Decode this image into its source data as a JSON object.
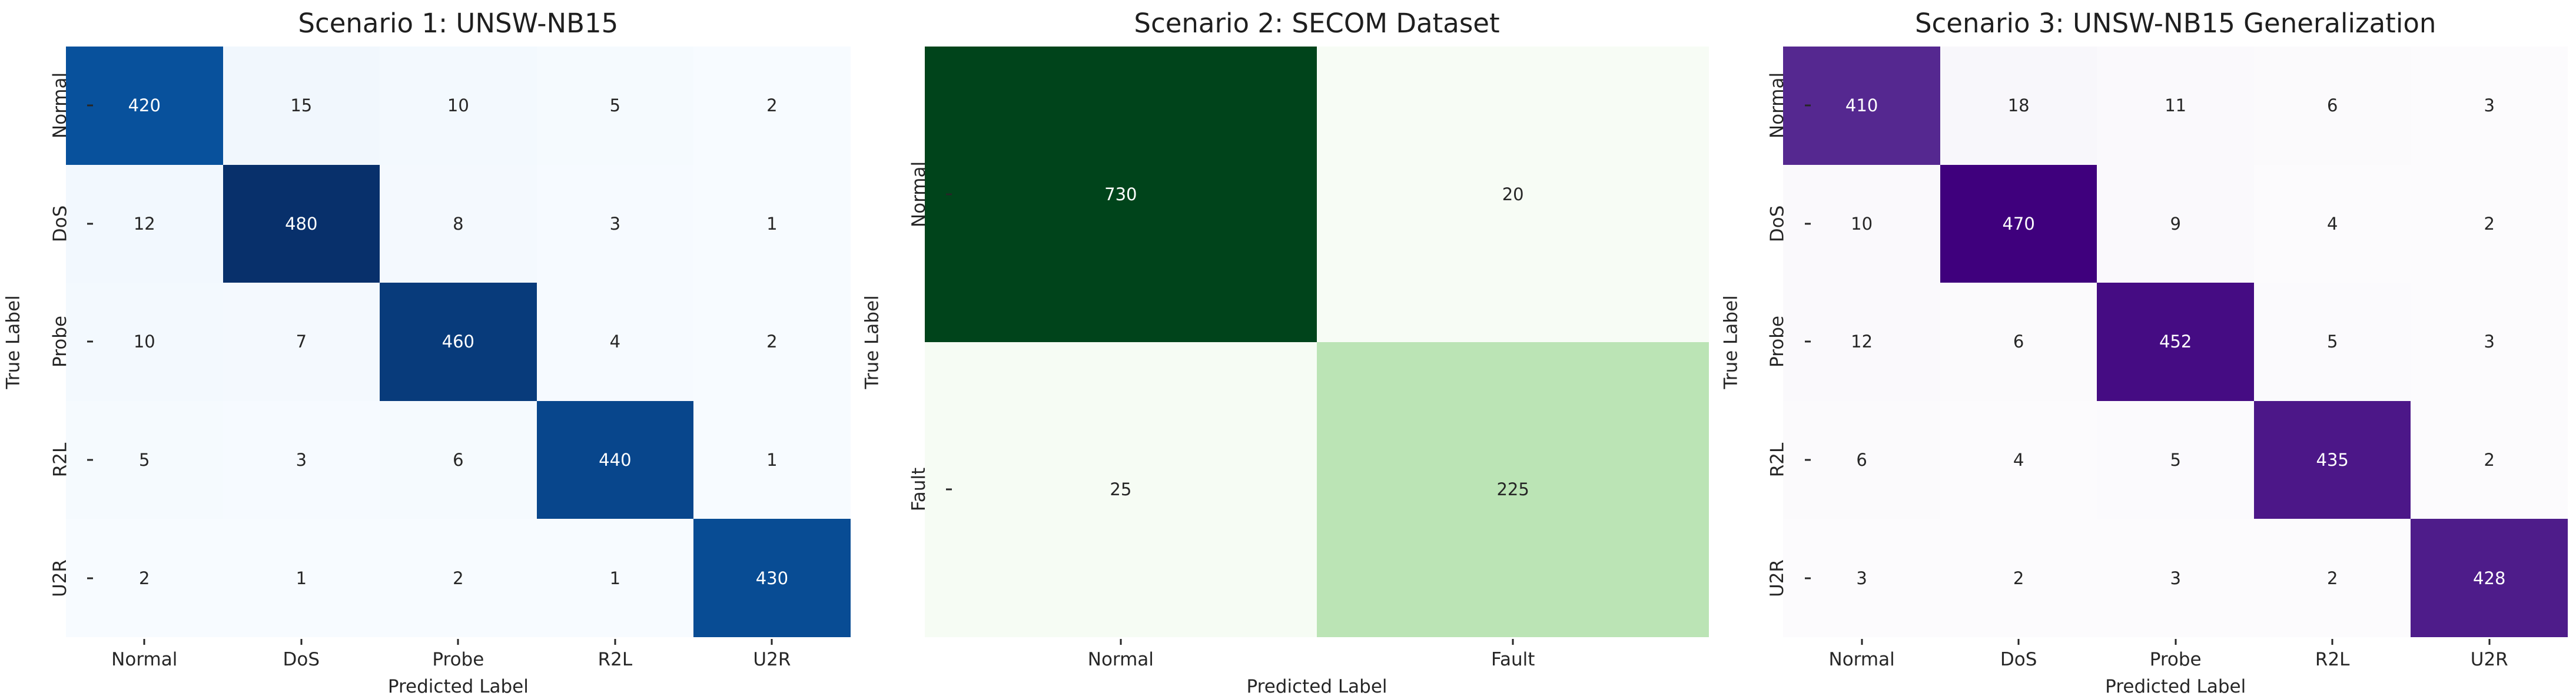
{
  "figure": {
    "background": "#ffffff",
    "text_color": "#262626",
    "title_color": "#1f1f1f"
  },
  "text_colors": {
    "dark": "#262626",
    "light": "#ffffff"
  },
  "colormaps": {
    "Blues": [
      "#f7fbff",
      "#deebf7",
      "#c6dbef",
      "#9ecae1",
      "#6baed6",
      "#4292c6",
      "#2171b5",
      "#08519c",
      "#08306b"
    ],
    "Greens": [
      "#f7fcf5",
      "#e5f5e0",
      "#c7e9c0",
      "#a1d99b",
      "#74c476",
      "#41ab5d",
      "#238b45",
      "#006d2c",
      "#00441b"
    ],
    "Purples": [
      "#fcfbfd",
      "#efedf5",
      "#dadaeb",
      "#bcbddc",
      "#9e9ac8",
      "#807dba",
      "#6a51a3",
      "#54278f",
      "#3f007d"
    ]
  },
  "chart_data": [
    {
      "type": "heatmap",
      "title": "Scenario 1: UNSW-NB15",
      "xlabel": "Predicted Label",
      "ylabel": "True Label",
      "x_tick_labels": [
        "Normal",
        "DoS",
        "Probe",
        "R2L",
        "U2R"
      ],
      "y_tick_labels": [
        "Normal",
        "DoS",
        "Probe",
        "R2L",
        "U2R"
      ],
      "colormap": "Blues",
      "annotated": true,
      "grid": false,
      "legend": "none",
      "vmin": 1,
      "vmax": 480,
      "values": [
        [
          420,
          15,
          10,
          5,
          2
        ],
        [
          12,
          480,
          8,
          3,
          1
        ],
        [
          10,
          7,
          460,
          4,
          2
        ],
        [
          5,
          3,
          6,
          440,
          1
        ],
        [
          2,
          1,
          2,
          1,
          430
        ]
      ]
    },
    {
      "type": "heatmap",
      "title": "Scenario 2: SECOM Dataset",
      "xlabel": "Predicted Label",
      "ylabel": "True Label",
      "x_tick_labels": [
        "Normal",
        "Fault"
      ],
      "y_tick_labels": [
        "Normal",
        "Fault"
      ],
      "colormap": "Greens",
      "annotated": true,
      "grid": false,
      "legend": "none",
      "vmin": 20,
      "vmax": 730,
      "values": [
        [
          730,
          20
        ],
        [
          25,
          225
        ]
      ]
    },
    {
      "type": "heatmap",
      "title": "Scenario 3: UNSW-NB15 Generalization",
      "xlabel": "Predicted Label",
      "ylabel": "True Label",
      "x_tick_labels": [
        "Normal",
        "DoS",
        "Probe",
        "R2L",
        "U2R"
      ],
      "y_tick_labels": [
        "Normal",
        "DoS",
        "Probe",
        "R2L",
        "U2R"
      ],
      "colormap": "Purples",
      "annotated": true,
      "grid": false,
      "legend": "none",
      "vmin": 2,
      "vmax": 470,
      "values": [
        [
          410,
          18,
          11,
          6,
          3
        ],
        [
          10,
          470,
          9,
          4,
          2
        ],
        [
          12,
          6,
          452,
          5,
          3
        ],
        [
          6,
          4,
          5,
          435,
          2
        ],
        [
          3,
          2,
          3,
          2,
          428
        ]
      ]
    }
  ]
}
